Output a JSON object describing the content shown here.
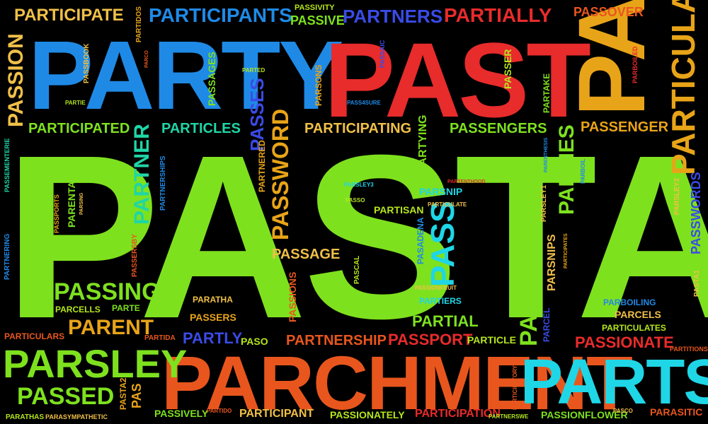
{
  "palette": {
    "bg": "#000000",
    "green": "#7ee11e",
    "red": "#e82b2b",
    "orange": "#e8561e",
    "gold": "#f0c048",
    "yellow": "#e8a418",
    "blue": "#1f8ae6",
    "cyan": "#1fd6e6",
    "teal": "#1fd6a6",
    "darkgreen": "#2bb02b",
    "lime": "#b6e61e",
    "royal": "#3a4be6"
  },
  "words": {
    "w1": "PASTA",
    "w2": "PARCHMENT",
    "w3": "PARTY",
    "w4": "PAST",
    "w5": "PARTS",
    "w6": "PARSLEY",
    "w7": "PASTOO",
    "w8": "PARTICULAR",
    "w9": "PARTICIPANTS",
    "w10": "PARTNERS",
    "w11": "PARTIALLY",
    "w12": "PARTICIPATE",
    "w13": "PASSION",
    "w14": "PARTICULARLY",
    "w15": "PASSWORD",
    "w16": "PARTNER",
    "w17": "PARTICIPATED",
    "w18": "PARTICLES",
    "w19": "PARTICIPATING",
    "w20": "PASSENGERS",
    "w21": "PASSENGER",
    "w22": "PASSING",
    "w23": "PARENT",
    "w24": "PASSED",
    "w25": "PASSIONATE",
    "w26": "PARTNERSHIP",
    "w27": "PASSPORT",
    "w28": "PARTIAL",
    "w29": "PASSAGE",
    "w30": "PASSOVER",
    "w31": "PASSIVITY",
    "w32": "PASSIVE",
    "w33": "PARTIES",
    "w34": "PASSES",
    "w35": "PASS",
    "w36": "PARSNIP",
    "w37": "PARTISAN",
    "w38": "PASSWORDS",
    "w39": "PARTICIPATION",
    "w40": "PARTICIPANT",
    "w41": "PASSIONATELY",
    "w42": "PASSIVELY",
    "w43": "PARASITIC",
    "w44": "PASSIONFLOWER",
    "w45": "PARTICLE",
    "w46": "PARCELS",
    "w47": "PARBOILING",
    "w48": "PARTICULATES",
    "w49": "PARTITIONS",
    "w50": "PASSERS",
    "w51": "PARATHA",
    "w52": "PARTE",
    "w53": "PARCELLS",
    "w54": "PARTLY",
    "w55": "PASO",
    "w56": "PARTIDA",
    "w57": "PARTICULARS",
    "w58": "PARATHAS",
    "w59": "PARASYMPATHETIC",
    "w60": "PAS",
    "w61": "PASTA2",
    "w62": "PARTIDO",
    "w63": "PASCO",
    "w64": "PARTNERSWE",
    "w65": "PARTICIPATORY",
    "w66": "PASSAGES",
    "w67": "PARSONS",
    "w68": "PASSBOOK",
    "w69": "PARTIDOS",
    "w70": "PARCO",
    "w71": "PARTED",
    "w72": "PASSAIC",
    "w73": "PASS4SURE",
    "w74": "PARTIE",
    "w75": "PASSER",
    "w76": "PARBOILED",
    "w77": "PARTAKE",
    "w78": "PARTYING",
    "w79": "PARTENTHOOD",
    "w80": "PARENTHESIS",
    "w81": "PARBOIL",
    "w82": "PASSEMENTERIE",
    "w83": "PARTNERSHIPS",
    "w84": "PASSPORTS",
    "w85": "PARENTAL",
    "w86": "PARSING",
    "w87": "PARTNERED",
    "w88": "PARSLEY3",
    "w89": "PASSO",
    "w90": "PARTICULATE",
    "w91": "PASADENA",
    "w92": "PASCAL",
    "w93": "PASSIONS",
    "w94": "PASSIONFRUIT",
    "w95": "PARTIERS",
    "w96": "PARCEL",
    "w97": "PARSNIPS",
    "w98": "PARTICIPATES",
    "w99": "PARSLEY1",
    "w100": "PARSLEY2",
    "w101": "PASTA1",
    "w102": "PASSERSBY",
    "w103": "PARTNERING"
  }
}
